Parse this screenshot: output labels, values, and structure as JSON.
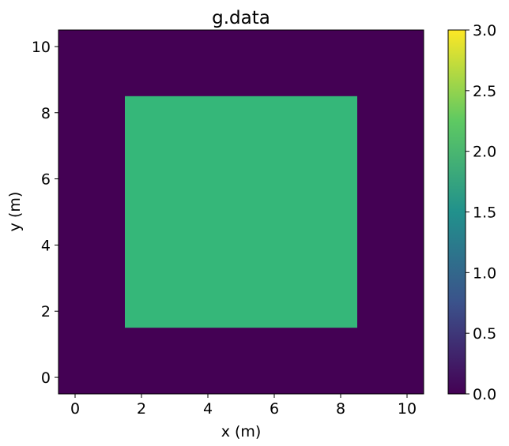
{
  "chart_data": {
    "type": "heatmap",
    "title": "g.data",
    "xlabel": "x (m)",
    "ylabel": "y (m)",
    "xlim": [
      -0.5,
      10.5
    ],
    "ylim": [
      -0.5,
      10.5
    ],
    "x_ticks": [
      0,
      2,
      4,
      6,
      8,
      10
    ],
    "y_ticks": [
      0,
      2,
      4,
      6,
      8,
      10
    ],
    "background_value": 0,
    "regions": [
      {
        "x_range": [
          1.5,
          8.5
        ],
        "y_range": [
          1.5,
          8.5
        ],
        "value": 2
      }
    ],
    "colorbar": {
      "colormap": "viridis",
      "range": [
        0.0,
        3.0
      ],
      "ticks": [
        "0.0",
        "0.5",
        "1.0",
        "1.5",
        "2.0",
        "2.5",
        "3.0"
      ],
      "stops": [
        "#440154",
        "#3b528b",
        "#21918c",
        "#5ec962",
        "#fde725"
      ]
    },
    "colors": {
      "value_0": "#440154",
      "value_2": "#35b779"
    }
  }
}
